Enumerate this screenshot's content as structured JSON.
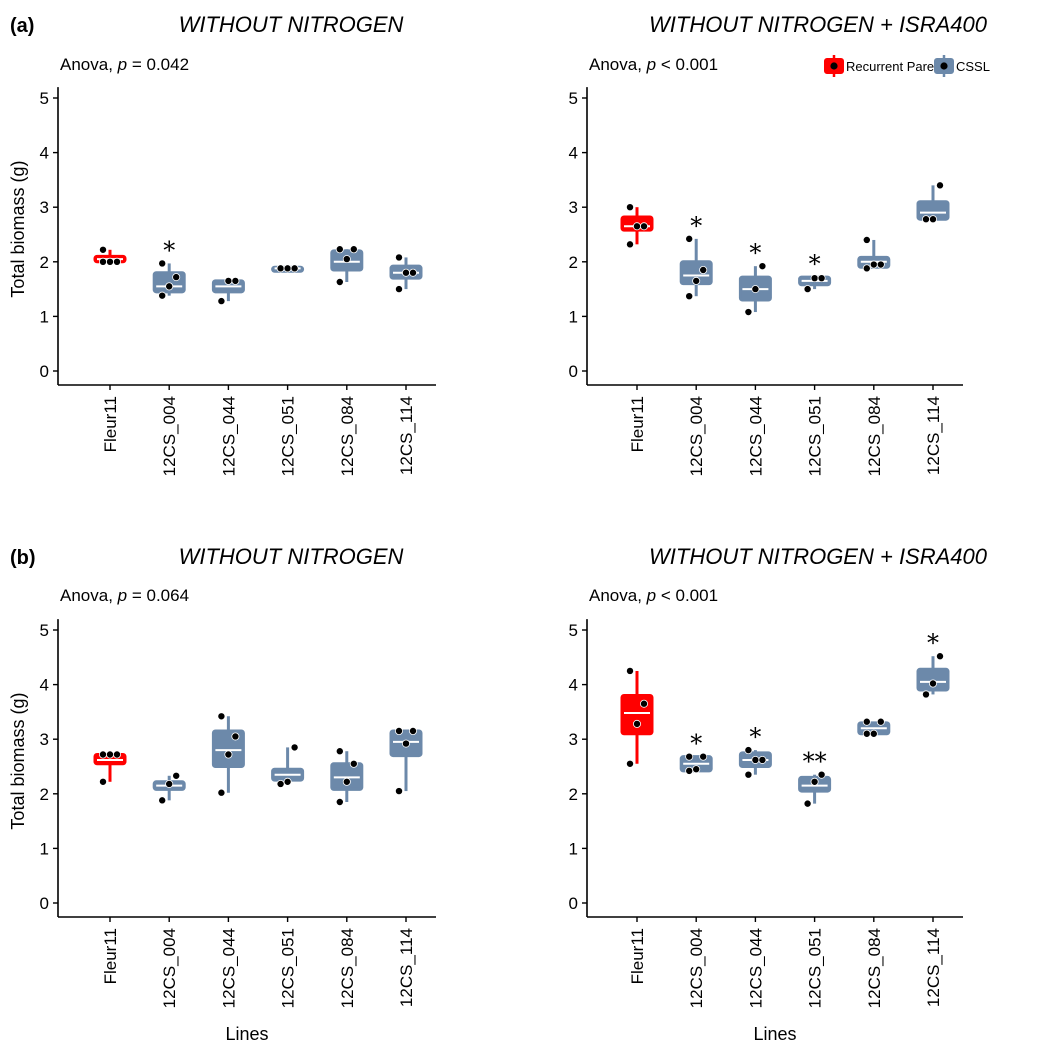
{
  "colors": {
    "recurrent": "#ff0000",
    "cssl": "#6c89aa",
    "point": "#000000"
  },
  "legend": {
    "items": [
      "Recurrent Parent",
      "CSSL"
    ],
    "position": "top-right"
  },
  "chart_data": [
    {
      "panel": "(a)",
      "title": "WITHOUT NITROGEN",
      "anova": {
        "prefix": "Anova, ",
        "pvar": "p",
        "rest": " = 0.042"
      },
      "ylabel": "Total biomass (g)",
      "xlabel": "",
      "type": "box",
      "ylim": [
        0,
        5.2
      ],
      "yticks": [
        "0",
        "1",
        "2",
        "3",
        "4",
        "5"
      ],
      "categories": [
        "Fleur11",
        "12CS_004",
        "12CS_044",
        "12CS_051",
        "12CS_084",
        "12CS_114"
      ],
      "groups": [
        "recurrent",
        "cssl",
        "cssl",
        "cssl",
        "cssl",
        "cssl"
      ],
      "boxes": [
        {
          "q1": 2.0,
          "med": 2.05,
          "q3": 2.1,
          "lo": 2.0,
          "hi": 2.22,
          "points": [
            2.0,
            2.0,
            2.0,
            2.22
          ],
          "sig": ""
        },
        {
          "q1": 1.45,
          "med": 1.55,
          "q3": 1.8,
          "lo": 1.38,
          "hi": 1.97,
          "points": [
            1.38,
            1.55,
            1.72,
            1.97
          ],
          "sig": "*"
        },
        {
          "q1": 1.45,
          "med": 1.55,
          "q3": 1.65,
          "lo": 1.28,
          "hi": 1.65,
          "points": [
            1.28,
            1.65,
            1.65
          ],
          "sig": ""
        },
        {
          "q1": 1.85,
          "med": 1.88,
          "q3": 1.9,
          "lo": 1.85,
          "hi": 1.9,
          "points": [
            1.88,
            1.88,
            1.88
          ],
          "sig": ""
        },
        {
          "q1": 1.85,
          "med": 2.0,
          "q3": 2.2,
          "lo": 1.63,
          "hi": 2.23,
          "points": [
            1.63,
            2.05,
            2.23,
            2.23
          ],
          "sig": ""
        },
        {
          "q1": 1.7,
          "med": 1.8,
          "q3": 1.92,
          "lo": 1.5,
          "hi": 2.08,
          "points": [
            1.5,
            1.8,
            1.8,
            2.08
          ],
          "sig": ""
        }
      ]
    },
    {
      "panel": "",
      "title": "WITHOUT NITROGEN + ISRA400",
      "anova": {
        "prefix": "Anova, ",
        "pvar": "p",
        "rest": " < 0.001"
      },
      "ylabel": "",
      "xlabel": "",
      "type": "box",
      "ylim": [
        0,
        5.2
      ],
      "yticks": [
        "0",
        "1",
        "2",
        "3",
        "4",
        "5"
      ],
      "categories": [
        "Fleur11",
        "12CS_004",
        "12CS_044",
        "12CS_051",
        "12CS_084",
        "12CS_114"
      ],
      "groups": [
        "recurrent",
        "cssl",
        "cssl",
        "cssl",
        "cssl",
        "cssl"
      ],
      "boxes": [
        {
          "q1": 2.58,
          "med": 2.65,
          "q3": 2.82,
          "lo": 2.32,
          "hi": 3.0,
          "points": [
            2.32,
            2.65,
            2.65,
            3.0
          ],
          "sig": ""
        },
        {
          "q1": 1.6,
          "med": 1.75,
          "q3": 2.0,
          "lo": 1.37,
          "hi": 2.42,
          "points": [
            1.37,
            1.65,
            1.85,
            2.42
          ],
          "sig": "*"
        },
        {
          "q1": 1.3,
          "med": 1.5,
          "q3": 1.72,
          "lo": 1.08,
          "hi": 1.92,
          "points": [
            1.08,
            1.5,
            1.92
          ],
          "sig": "*"
        },
        {
          "q1": 1.58,
          "med": 1.65,
          "q3": 1.72,
          "lo": 1.5,
          "hi": 1.72,
          "points": [
            1.5,
            1.7,
            1.7
          ],
          "sig": "*"
        },
        {
          "q1": 1.9,
          "med": 2.0,
          "q3": 2.08,
          "lo": 1.88,
          "hi": 2.4,
          "points": [
            1.88,
            1.95,
            1.95,
            2.4
          ],
          "sig": ""
        },
        {
          "q1": 2.78,
          "med": 2.9,
          "q3": 3.1,
          "lo": 2.75,
          "hi": 3.4,
          "points": [
            2.78,
            2.78,
            3.4
          ],
          "sig": ""
        }
      ]
    },
    {
      "panel": "(b)",
      "title": "WITHOUT NITROGEN",
      "anova": {
        "prefix": "Anova, ",
        "pvar": "p",
        "rest": " = 0.064"
      },
      "ylabel": "Total biomass (g)",
      "xlabel": "Lines",
      "type": "box",
      "ylim": [
        0,
        5.2
      ],
      "yticks": [
        "0",
        "1",
        "2",
        "3",
        "4",
        "5"
      ],
      "categories": [
        "Fleur11",
        "12CS_004",
        "12CS_044",
        "12CS_051",
        "12CS_084",
        "12CS_114"
      ],
      "groups": [
        "recurrent",
        "cssl",
        "cssl",
        "cssl",
        "cssl",
        "cssl"
      ],
      "boxes": [
        {
          "q1": 2.55,
          "med": 2.62,
          "q3": 2.72,
          "lo": 2.22,
          "hi": 2.72,
          "points": [
            2.22,
            2.72,
            2.72,
            2.72
          ],
          "sig": ""
        },
        {
          "q1": 2.08,
          "med": 2.15,
          "q3": 2.22,
          "lo": 1.88,
          "hi": 2.33,
          "points": [
            1.88,
            2.18,
            2.33
          ],
          "sig": ""
        },
        {
          "q1": 2.5,
          "med": 2.8,
          "q3": 3.15,
          "lo": 2.02,
          "hi": 3.42,
          "points": [
            2.02,
            2.72,
            3.05,
            3.42
          ],
          "sig": ""
        },
        {
          "q1": 2.25,
          "med": 2.35,
          "q3": 2.45,
          "lo": 2.18,
          "hi": 2.85,
          "points": [
            2.18,
            2.22,
            2.85
          ],
          "sig": ""
        },
        {
          "q1": 2.08,
          "med": 2.3,
          "q3": 2.55,
          "lo": 1.85,
          "hi": 2.78,
          "points": [
            1.85,
            2.22,
            2.55,
            2.78
          ],
          "sig": ""
        },
        {
          "q1": 2.7,
          "med": 2.95,
          "q3": 3.15,
          "lo": 2.05,
          "hi": 3.15,
          "points": [
            2.05,
            2.92,
            3.15,
            3.15
          ],
          "sig": ""
        }
      ]
    },
    {
      "panel": "",
      "title": "WITHOUT NITROGEN + ISRA400",
      "anova": {
        "prefix": "Anova, ",
        "pvar": "p",
        "rest": " < 0.001"
      },
      "ylabel": "",
      "xlabel": "Lines",
      "type": "box",
      "ylim": [
        0,
        5.2
      ],
      "yticks": [
        "0",
        "1",
        "2",
        "3",
        "4",
        "5"
      ],
      "categories": [
        "Fleur11",
        "12CS_004",
        "12CS_044",
        "12CS_051",
        "12CS_084",
        "12CS_114"
      ],
      "groups": [
        "recurrent",
        "cssl",
        "cssl",
        "cssl",
        "cssl",
        "cssl"
      ],
      "boxes": [
        {
          "q1": 3.1,
          "med": 3.48,
          "q3": 3.8,
          "lo": 2.55,
          "hi": 4.25,
          "points": [
            2.55,
            3.28,
            3.65,
            4.25
          ],
          "sig": ""
        },
        {
          "q1": 2.42,
          "med": 2.55,
          "q3": 2.68,
          "lo": 2.42,
          "hi": 2.68,
          "points": [
            2.42,
            2.45,
            2.68,
            2.68
          ],
          "sig": "*"
        },
        {
          "q1": 2.5,
          "med": 2.62,
          "q3": 2.75,
          "lo": 2.35,
          "hi": 2.8,
          "points": [
            2.35,
            2.62,
            2.62,
            2.8
          ],
          "sig": "*"
        },
        {
          "q1": 2.05,
          "med": 2.15,
          "q3": 2.3,
          "lo": 1.82,
          "hi": 2.35,
          "points": [
            1.82,
            2.22,
            2.35
          ],
          "sig": "**"
        },
        {
          "q1": 3.1,
          "med": 3.2,
          "q3": 3.3,
          "lo": 3.1,
          "hi": 3.32,
          "points": [
            3.1,
            3.1,
            3.32,
            3.32
          ],
          "sig": ""
        },
        {
          "q1": 3.9,
          "med": 4.05,
          "q3": 4.28,
          "lo": 3.82,
          "hi": 4.52,
          "points": [
            3.82,
            4.02,
            4.52
          ],
          "sig": "*"
        }
      ]
    }
  ]
}
